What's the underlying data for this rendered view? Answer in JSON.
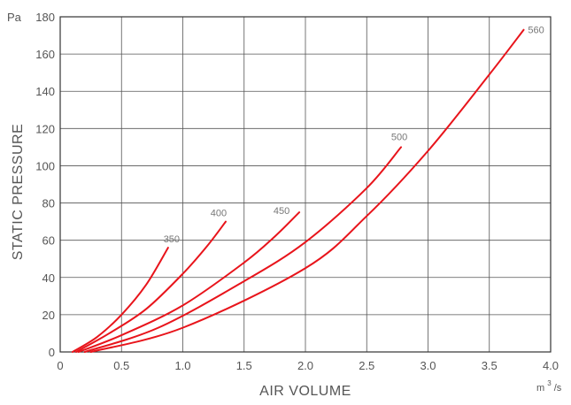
{
  "chart_data": {
    "type": "line",
    "xlabel": "AIR VOLUME",
    "ylabel": "STATIC PRESSURE",
    "y_unit": "Pa",
    "x_unit": {
      "base": "m",
      "superscript": "3",
      "suffix": "/s"
    },
    "xlim": [
      0,
      4.0
    ],
    "ylim": [
      0,
      180
    ],
    "x_ticks": [
      "0",
      "0.5",
      "1.0",
      "1.5",
      "2.0",
      "2.5",
      "3.0",
      "3.5",
      "4.0"
    ],
    "y_ticks": [
      "0",
      "20",
      "40",
      "60",
      "80",
      "100",
      "120",
      "140",
      "160",
      "180"
    ],
    "grid": true,
    "line_color": "#e8141b",
    "series": [
      {
        "name": "350",
        "points": [
          [
            0.1,
            0
          ],
          [
            0.3,
            8
          ],
          [
            0.5,
            20
          ],
          [
            0.7,
            36
          ],
          [
            0.88,
            56
          ]
        ]
      },
      {
        "name": "400",
        "points": [
          [
            0.13,
            0
          ],
          [
            0.4,
            10
          ],
          [
            0.7,
            23
          ],
          [
            1.0,
            42
          ],
          [
            1.2,
            57
          ],
          [
            1.35,
            70
          ]
        ]
      },
      {
        "name": "450",
        "points": [
          [
            0.15,
            0
          ],
          [
            0.5,
            9
          ],
          [
            1.0,
            25
          ],
          [
            1.5,
            48
          ],
          [
            1.75,
            62
          ],
          [
            1.95,
            75
          ]
        ]
      },
      {
        "name": "500",
        "points": [
          [
            0.2,
            0
          ],
          [
            0.8,
            13
          ],
          [
            1.5,
            38
          ],
          [
            2.0,
            59
          ],
          [
            2.5,
            88
          ],
          [
            2.78,
            110
          ]
        ]
      },
      {
        "name": "560",
        "points": [
          [
            0.25,
            0
          ],
          [
            1.0,
            13
          ],
          [
            2.0,
            45
          ],
          [
            2.5,
            73
          ],
          [
            3.0,
            108
          ],
          [
            3.5,
            149
          ],
          [
            3.78,
            173
          ]
        ]
      }
    ]
  }
}
